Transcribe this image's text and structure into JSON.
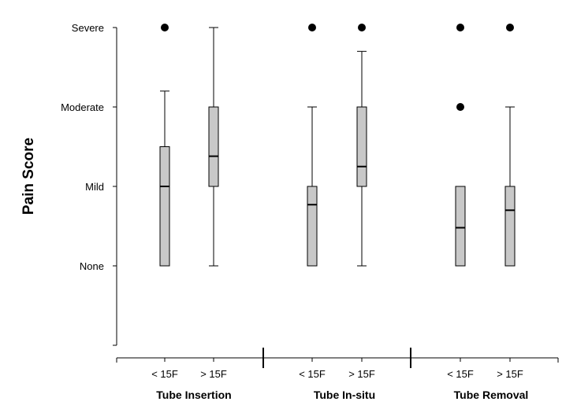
{
  "chart_data": {
    "type": "box",
    "ylabel": "Pain Score",
    "y_ticks": [
      {
        "value": 0,
        "label": "None"
      },
      {
        "value": 1,
        "label": "Mild"
      },
      {
        "value": 2,
        "label": "Moderate"
      },
      {
        "value": 3,
        "label": "Severe"
      }
    ],
    "ylim": [
      -1,
      3
    ],
    "groups": [
      {
        "label": "Tube Insertion",
        "categories": [
          "< 15F",
          "> 15F"
        ]
      },
      {
        "label": "Tube In-situ",
        "categories": [
          "< 15F",
          "> 15F"
        ]
      },
      {
        "label": "Tube Removal",
        "categories": [
          "< 15F",
          "> 15F"
        ]
      }
    ],
    "boxes": [
      {
        "group": "Tube Insertion",
        "category": "< 15F",
        "whisker_low": 0,
        "q1": 0,
        "median": 1.0,
        "q3": 1.5,
        "whisker_high": 2.2,
        "outliers": [
          3
        ]
      },
      {
        "group": "Tube Insertion",
        "category": "> 15F",
        "whisker_low": 0,
        "q1": 1.0,
        "median": 1.38,
        "q3": 2.0,
        "whisker_high": 3.0,
        "outliers": []
      },
      {
        "group": "Tube In-situ",
        "category": "< 15F",
        "whisker_low": 0,
        "q1": 0,
        "median": 0.77,
        "q3": 1.0,
        "whisker_high": 2.0,
        "outliers": [
          3
        ]
      },
      {
        "group": "Tube In-situ",
        "category": "> 15F",
        "whisker_low": 0,
        "q1": 1.0,
        "median": 1.25,
        "q3": 2.0,
        "whisker_high": 2.7,
        "outliers": [
          3
        ]
      },
      {
        "group": "Tube Removal",
        "category": "< 15F",
        "whisker_low": 0,
        "q1": 0,
        "median": 0.48,
        "q3": 1.0,
        "whisker_high": 1.0,
        "outliers": [
          2,
          3
        ]
      },
      {
        "group": "Tube Removal",
        "category": "> 15F",
        "whisker_low": 0,
        "q1": 0,
        "median": 0.7,
        "q3": 1.0,
        "whisker_high": 2.0,
        "outliers": [
          3
        ]
      }
    ],
    "colors": {
      "box_fill": "#c8c8c8",
      "line": "#000000"
    }
  }
}
